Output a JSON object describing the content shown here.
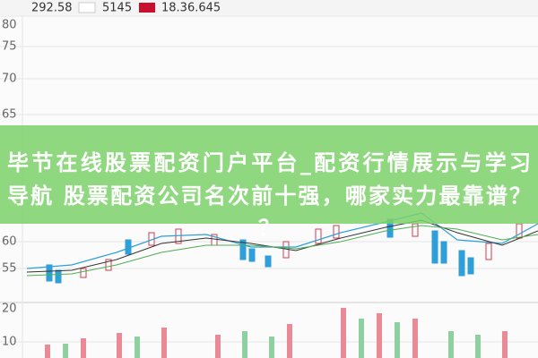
{
  "header": {
    "price": "292.58",
    "volume": "5145",
    "change": "18.36.645"
  },
  "axis_labels": [
    "80",
    "75",
    "70",
    "65",
    "60",
    "55",
    "20",
    "10"
  ],
  "banner": {
    "lines": [
      "毕节在线股票配资门户平台_配资行情展示与学习",
      "导航 股票配资公司名次前十强，哪家实力最靠谱？",
      "？"
    ]
  }
}
